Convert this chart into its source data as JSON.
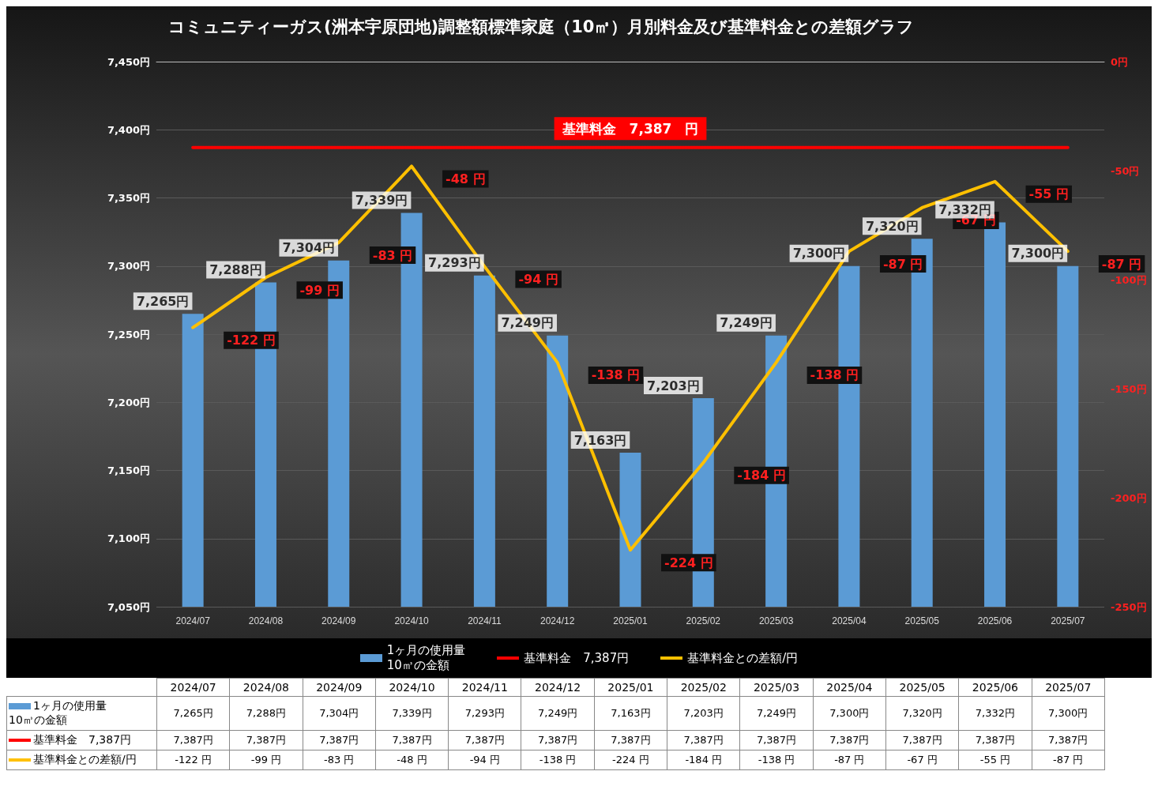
{
  "chart_data": {
    "type": "bar",
    "title": "コミュニティーガス(洲本宇原団地)調整額標準家庭（10㎥）月別料金及び基準料金との差額グラフ",
    "categories": [
      "2024/07",
      "2024/08",
      "2024/09",
      "2024/10",
      "2024/11",
      "2024/12",
      "2025/01",
      "2025/02",
      "2025/03",
      "2025/04",
      "2025/05",
      "2025/06",
      "2025/07"
    ],
    "series": [
      {
        "name": "1ヶ月の使用量\n10㎥の金額",
        "color": "#5b9bd5",
        "values": [
          7265,
          7288,
          7304,
          7339,
          7293,
          7249,
          7163,
          7203,
          7249,
          7300,
          7320,
          7332,
          7300
        ],
        "value_labels": [
          "7,265円",
          "7,288円",
          "7,304円",
          "7,339円",
          "7,293円",
          "7,249円",
          "7,163円",
          "7,203円",
          "7,249円",
          "7,300円",
          "7,320円",
          "7,332円",
          "7,300円"
        ]
      },
      {
        "name": "基準料金　7,387円",
        "type": "line",
        "color": "#ff0000",
        "values": [
          7387,
          7387,
          7387,
          7387,
          7387,
          7387,
          7387,
          7387,
          7387,
          7387,
          7387,
          7387,
          7387
        ],
        "value_labels": [
          "7,387円",
          "7,387円",
          "7,387円",
          "7,387円",
          "7,387円",
          "7,387円",
          "7,387円",
          "7,387円",
          "7,387円",
          "7,387円",
          "7,387円",
          "7,387円",
          "7,387円"
        ]
      },
      {
        "name": "基準料金との差額/円",
        "type": "line",
        "axis": "y2",
        "color": "#ffc000",
        "values": [
          -122,
          -99,
          -83,
          -48,
          -94,
          -138,
          -224,
          -184,
          -138,
          -87,
          -67,
          -55,
          -87
        ],
        "value_labels": [
          "-122 円",
          "-99 円",
          "-83 円",
          "-48 円",
          "-94 円",
          "-138 円",
          "-224 円",
          "-184 円",
          "-138 円",
          "-87 円",
          "-67 円",
          "-55 円",
          "-87 円"
        ]
      }
    ],
    "annotations": [
      {
        "text": "基準料金　7,387　円",
        "x": "2025/01",
        "y": 7387
      }
    ],
    "ylim": [
      7050,
      7450
    ],
    "yticks": [
      {
        "value": 7050,
        "label": "7,050円"
      },
      {
        "value": 7100,
        "label": "7,100円"
      },
      {
        "value": 7150,
        "label": "7,150円"
      },
      {
        "value": 7200,
        "label": "7,200円"
      },
      {
        "value": 7250,
        "label": "7,250円"
      },
      {
        "value": 7300,
        "label": "7,300円"
      },
      {
        "value": 7350,
        "label": "7,350円"
      },
      {
        "value": 7400,
        "label": "7,400円"
      },
      {
        "value": 7450,
        "label": "7,450円"
      }
    ],
    "y2lim": [
      -250,
      0
    ],
    "y2ticks": [
      {
        "value": -250,
        "label": "-250円"
      },
      {
        "value": -200,
        "label": "-200円"
      },
      {
        "value": -150,
        "label": "-150円"
      },
      {
        "value": -100,
        "label": "-100円"
      },
      {
        "value": -50,
        "label": "-50円"
      },
      {
        "value": 0,
        "label": "0円"
      }
    ],
    "grid": "y",
    "legend": "bottom",
    "marker": "none",
    "line_style": "solid"
  }
}
